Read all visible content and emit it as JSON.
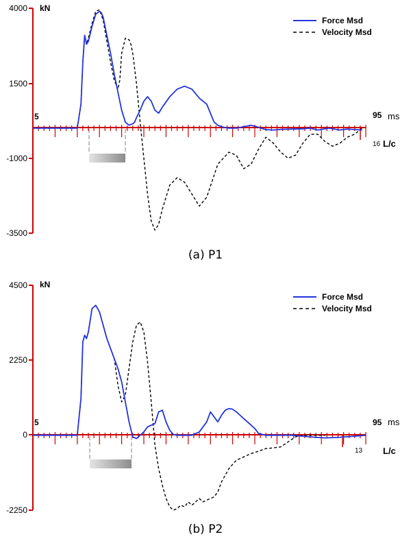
{
  "colors": {
    "force": "#2233dd",
    "velocity": "#000000",
    "axis": "#cc0000"
  },
  "chart_data": [
    {
      "type": "line",
      "caption": "(a)  P1",
      "units": "kN",
      "y_ticks": [
        "4000",
        "1500",
        "-1000",
        "-3500"
      ],
      "time_start_label": "5",
      "time_end_label": "95",
      "time_unit": "ms",
      "lc_value": "16",
      "lc_label": "L/c",
      "legend": [
        "Force Msd",
        "Velocity Msd"
      ],
      "ylim": [
        -3500,
        4000
      ],
      "xlim": [
        5,
        95
      ],
      "series": [
        {
          "name": "Force Msd",
          "style": "solid",
          "x": [
            5,
            17,
            18,
            18.5,
            19,
            19.5,
            20,
            21,
            22,
            23,
            23.5,
            24,
            25,
            26,
            27,
            28,
            29,
            30,
            31,
            32,
            32.5,
            33,
            34,
            35,
            36,
            37,
            38,
            39,
            40,
            42,
            44,
            46,
            48,
            50,
            51,
            52,
            53,
            54,
            55,
            56,
            57,
            58,
            60,
            62,
            64,
            66,
            68,
            70,
            72,
            75,
            78,
            80,
            82,
            85,
            88,
            90,
            94
          ],
          "y": [
            0,
            0,
            800,
            2200,
            3100,
            2800,
            2900,
            3400,
            3800,
            3900,
            3850,
            3700,
            3100,
            2500,
            1800,
            1200,
            600,
            200,
            100,
            150,
            200,
            350,
            600,
            900,
            1050,
            900,
            600,
            500,
            700,
            1050,
            1300,
            1400,
            1300,
            1000,
            900,
            800,
            500,
            200,
            100,
            50,
            20,
            0,
            0,
            50,
            100,
            30,
            -50,
            -60,
            -40,
            -30,
            -20,
            0,
            -60,
            0,
            -60,
            -30,
            -60
          ]
        },
        {
          "name": "Velocity Msd",
          "style": "dashed",
          "x": [
            5,
            17,
            18,
            18.5,
            19,
            19.5,
            20,
            21,
            22,
            23,
            24,
            25,
            26,
            27,
            28,
            28.5,
            29,
            30,
            31,
            31.5,
            32,
            33,
            34,
            35,
            36,
            37,
            38,
            39,
            40,
            42,
            44,
            46,
            48,
            50,
            52,
            55,
            58,
            60,
            62,
            64,
            66,
            68,
            70,
            72,
            74,
            76,
            78,
            80,
            82,
            84,
            86,
            88,
            90,
            92,
            94
          ],
          "y": [
            0,
            0,
            800,
            2200,
            3100,
            2800,
            3000,
            3500,
            3900,
            3950,
            3600,
            2900,
            2200,
            1600,
            1300,
            1600,
            2500,
            3000,
            2950,
            2800,
            2500,
            1500,
            200,
            -1000,
            -2200,
            -3100,
            -3400,
            -3200,
            -2700,
            -1900,
            -1650,
            -1800,
            -2200,
            -2600,
            -2300,
            -1200,
            -800,
            -900,
            -1350,
            -1200,
            -700,
            -300,
            -500,
            -800,
            -1000,
            -900,
            -500,
            -200,
            -200,
            -450,
            -600,
            -500,
            -300,
            -200,
            0
          ]
        }
      ]
    },
    {
      "type": "line",
      "caption": "(b)  P2",
      "units": "kN",
      "y_ticks": [
        "4500",
        "2250",
        "0",
        "-2250"
      ],
      "time_start_label": "5",
      "time_end_label": "95",
      "time_unit": "ms",
      "lc_value": "13",
      "lc_label": "L/c",
      "legend": [
        "Force Msd",
        "Velocity Msd"
      ],
      "ylim": [
        -2250,
        4500
      ],
      "xlim": [
        5,
        95
      ],
      "series": [
        {
          "name": "Force Msd",
          "style": "solid",
          "x": [
            5,
            17,
            18,
            18.5,
            19,
            19.5,
            20,
            21,
            22,
            23,
            24,
            25,
            26,
            27,
            28,
            29,
            30,
            31,
            32,
            33,
            34,
            35,
            36,
            37,
            38,
            39,
            40,
            41,
            42,
            43,
            44,
            45,
            46,
            48,
            50,
            52,
            53,
            54,
            55,
            56,
            57,
            58,
            59,
            60,
            61,
            62,
            63,
            64,
            65,
            66,
            68,
            70,
            72,
            75,
            78,
            80,
            84,
            88,
            92,
            95
          ],
          "y": [
            0,
            0,
            1100,
            2800,
            3000,
            2900,
            3100,
            3800,
            3900,
            3700,
            3300,
            2900,
            2600,
            2300,
            2000,
            1600,
            1000,
            400,
            -50,
            -100,
            0,
            100,
            250,
            300,
            350,
            700,
            750,
            400,
            150,
            20,
            0,
            0,
            0,
            0,
            100,
            400,
            700,
            550,
            400,
            600,
            750,
            800,
            780,
            700,
            600,
            500,
            400,
            300,
            200,
            50,
            0,
            0,
            0,
            0,
            -30,
            -50,
            -80,
            -60,
            -30,
            0
          ]
        },
        {
          "name": "Velocity Msd",
          "style": "dashed",
          "x": [
            5,
            17,
            18,
            18.5,
            19,
            19.5,
            20,
            21,
            22,
            23,
            24,
            25,
            26,
            27,
            28,
            29,
            30,
            31,
            32,
            33,
            34,
            35,
            36,
            37,
            38,
            39,
            40,
            41,
            42,
            43,
            44,
            45,
            46,
            47,
            48,
            49,
            50,
            51,
            52,
            53,
            54,
            55,
            56,
            58,
            60,
            62,
            64,
            66,
            68,
            70,
            72,
            74,
            76,
            78,
            80,
            82,
            84
          ],
          "y": [
            0,
            0,
            1100,
            2800,
            3000,
            2900,
            3100,
            3800,
            3900,
            3700,
            3300,
            2900,
            2600,
            2300,
            1500,
            1000,
            1200,
            2000,
            2800,
            3300,
            3400,
            3100,
            2200,
            1000,
            -300,
            -1000,
            -1500,
            -1900,
            -2150,
            -2250,
            -2200,
            -2100,
            -2150,
            -2000,
            -2100,
            -2000,
            -1900,
            -2000,
            -1950,
            -1900,
            -1850,
            -1700,
            -1400,
            -1000,
            -750,
            -650,
            -550,
            -480,
            -400,
            -380,
            -350,
            -200,
            -50,
            0,
            0,
            0,
            0
          ]
        }
      ]
    }
  ]
}
